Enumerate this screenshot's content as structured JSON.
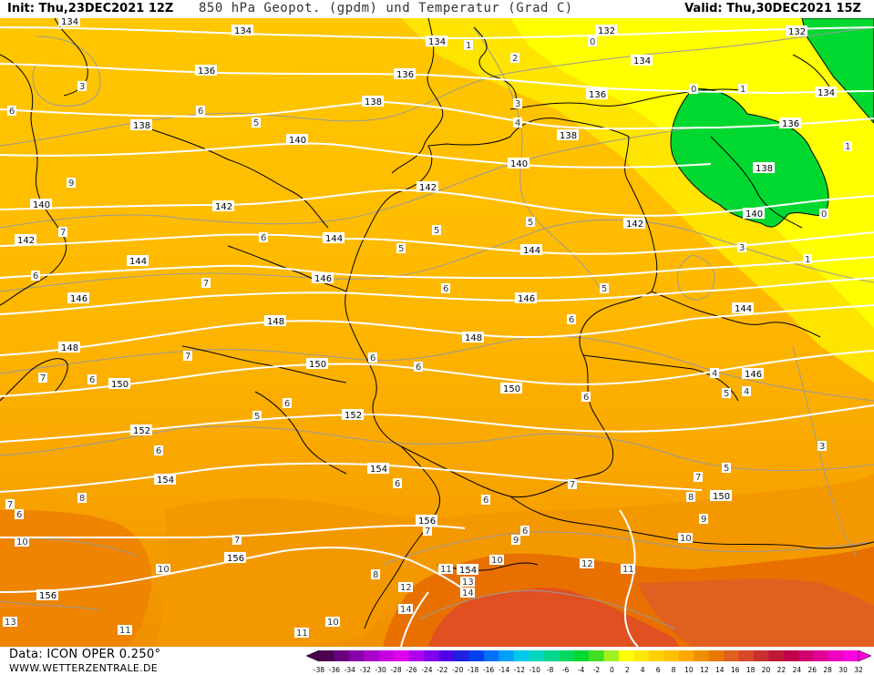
{
  "header": {
    "init": "Init: Thu,23DEC2021 12Z",
    "title": "850 hPa Geopot. (gpdm) und Temperatur (Grad C)",
    "valid": "Valid: Thu,30DEC2021 15Z"
  },
  "footer": {
    "data_source": "Data: ICON OPER 0.250°",
    "website": "WWW.WETTERZENTRALE.DE"
  },
  "geopotential_labels": [
    "132",
    "134",
    "136",
    "138",
    "140",
    "142",
    "144",
    "146",
    "148",
    "150",
    "152",
    "154",
    "156"
  ],
  "temperature_labels": [
    "0",
    "1",
    "2",
    "3",
    "4",
    "5",
    "6",
    "7",
    "8",
    "9",
    "10",
    "11",
    "12",
    "13",
    "14"
  ],
  "color_scale": {
    "ticks": [
      "-38",
      "-36",
      "-34",
      "-32",
      "-30",
      "-28",
      "-26",
      "-24",
      "-22",
      "-20",
      "-18",
      "-16",
      "-14",
      "-12",
      "-10",
      "-8",
      "-6",
      "-4",
      "-2",
      "0",
      "2",
      "4",
      "6",
      "8",
      "10",
      "12",
      "14",
      "16",
      "18",
      "20",
      "22",
      "24",
      "26",
      "28",
      "30",
      "32"
    ],
    "colors": [
      "#4b0050",
      "#6a0080",
      "#8800a8",
      "#a800c8",
      "#c800e0",
      "#e000f0",
      "#b000f0",
      "#8000f0",
      "#5000e8",
      "#2020e0",
      "#0040f0",
      "#0070f8",
      "#00a0f8",
      "#00c8e8",
      "#00d8c0",
      "#00d890",
      "#00d860",
      "#00d830",
      "#40e020",
      "#a0f020",
      "#ffff00",
      "#ffe800",
      "#ffd000",
      "#ffc000",
      "#ffa800",
      "#f09000",
      "#e87800",
      "#e06020",
      "#d84828",
      "#c83030",
      "#c01838",
      "#c00048",
      "#d00070",
      "#e00098",
      "#f000c0",
      "#ff00e0"
    ]
  }
}
